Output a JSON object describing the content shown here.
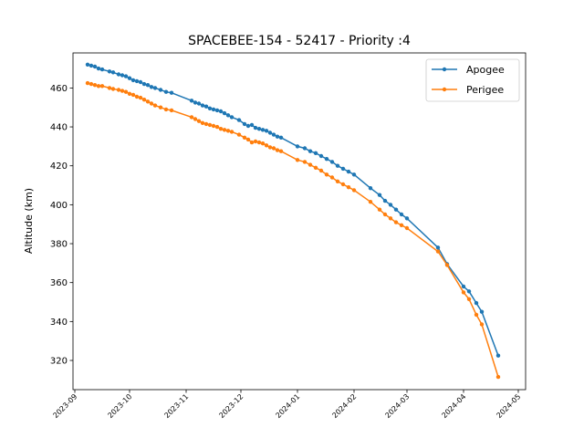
{
  "chart_data": {
    "type": "line",
    "title": "SPACEBEE-154 - 52417 - Priority :4",
    "xlabel": "",
    "ylabel": "Altitude (km)",
    "xlim": [
      "2023-08-31",
      "2024-05-05"
    ],
    "ylim": [
      305,
      478
    ],
    "x_ticks": [
      "2023-09",
      "2023-10",
      "2023-11",
      "2023-12",
      "2024-01",
      "2024-02",
      "2024-03",
      "2024-04",
      "2024-05"
    ],
    "y_ticks": [
      320,
      340,
      360,
      380,
      400,
      420,
      440,
      460
    ],
    "grid": false,
    "legend_position": "top-right",
    "series": [
      {
        "name": "Apogee",
        "color": "#1f77b4",
        "points": [
          [
            "2023-09-08",
            472
          ],
          [
            "2023-09-10",
            471.5
          ],
          [
            "2023-09-12",
            471
          ],
          [
            "2023-09-14",
            470
          ],
          [
            "2023-09-16",
            469.5
          ],
          [
            "2023-09-20",
            468.5
          ],
          [
            "2023-09-22",
            468
          ],
          [
            "2023-09-25",
            467
          ],
          [
            "2023-09-27",
            466.5
          ],
          [
            "2023-09-29",
            466
          ],
          [
            "2023-10-01",
            465
          ],
          [
            "2023-10-03",
            464
          ],
          [
            "2023-10-05",
            463.5
          ],
          [
            "2023-10-07",
            463
          ],
          [
            "2023-10-09",
            462
          ],
          [
            "2023-10-11",
            461.5
          ],
          [
            "2023-10-13",
            460.5
          ],
          [
            "2023-10-15",
            460
          ],
          [
            "2023-10-18",
            459
          ],
          [
            "2023-10-21",
            458
          ],
          [
            "2023-10-24",
            457.5
          ],
          [
            "2023-11-04",
            453.5
          ],
          [
            "2023-11-06",
            452.5
          ],
          [
            "2023-11-08",
            452
          ],
          [
            "2023-11-10",
            451
          ],
          [
            "2023-11-12",
            450.5
          ],
          [
            "2023-11-14",
            449.5
          ],
          [
            "2023-11-16",
            449
          ],
          [
            "2023-11-18",
            448.5
          ],
          [
            "2023-11-20",
            448
          ],
          [
            "2023-11-22",
            447
          ],
          [
            "2023-11-24",
            446
          ],
          [
            "2023-11-26",
            445
          ],
          [
            "2023-11-30",
            443.5
          ],
          [
            "2023-12-03",
            441.5
          ],
          [
            "2023-12-05",
            440.5
          ],
          [
            "2023-12-07",
            441
          ],
          [
            "2023-12-09",
            439.5
          ],
          [
            "2023-12-11",
            439
          ],
          [
            "2023-12-13",
            438.5
          ],
          [
            "2023-12-15",
            438
          ],
          [
            "2023-12-17",
            437
          ],
          [
            "2023-12-19",
            436
          ],
          [
            "2023-12-21",
            435
          ],
          [
            "2023-12-23",
            434.5
          ],
          [
            "2024-01-01",
            430
          ],
          [
            "2024-01-05",
            429
          ],
          [
            "2024-01-08",
            427.5
          ],
          [
            "2024-01-11",
            426.5
          ],
          [
            "2024-01-14",
            425
          ],
          [
            "2024-01-17",
            423.5
          ],
          [
            "2024-01-20",
            422
          ],
          [
            "2024-01-23",
            420
          ],
          [
            "2024-01-26",
            418.5
          ],
          [
            "2024-01-29",
            417
          ],
          [
            "2024-02-01",
            415.5
          ],
          [
            "2024-02-10",
            408.5
          ],
          [
            "2024-02-15",
            405
          ],
          [
            "2024-02-18",
            402
          ],
          [
            "2024-02-21",
            400
          ],
          [
            "2024-02-24",
            397.5
          ],
          [
            "2024-02-27",
            395
          ],
          [
            "2024-03-01",
            393
          ],
          [
            "2024-03-18",
            378
          ],
          [
            "2024-03-23",
            369.5
          ],
          [
            "2024-04-01",
            358
          ],
          [
            "2024-04-04",
            355.5
          ],
          [
            "2024-04-08",
            349.5
          ],
          [
            "2024-04-11",
            345
          ],
          [
            "2024-04-20",
            322.5
          ]
        ]
      },
      {
        "name": "Perigee",
        "color": "#ff7f0e",
        "points": [
          [
            "2023-09-08",
            462.5
          ],
          [
            "2023-09-10",
            462
          ],
          [
            "2023-09-12",
            461.5
          ],
          [
            "2023-09-14",
            461
          ],
          [
            "2023-09-16",
            461
          ],
          [
            "2023-09-20",
            460
          ],
          [
            "2023-09-22",
            459.5
          ],
          [
            "2023-09-25",
            459
          ],
          [
            "2023-09-27",
            458.5
          ],
          [
            "2023-09-29",
            458
          ],
          [
            "2023-10-01",
            457
          ],
          [
            "2023-10-03",
            456.5
          ],
          [
            "2023-10-05",
            455.5
          ],
          [
            "2023-10-07",
            455
          ],
          [
            "2023-10-09",
            454
          ],
          [
            "2023-10-11",
            453
          ],
          [
            "2023-10-13",
            452
          ],
          [
            "2023-10-15",
            451
          ],
          [
            "2023-10-18",
            450
          ],
          [
            "2023-10-21",
            449
          ],
          [
            "2023-10-24",
            448.5
          ],
          [
            "2023-11-04",
            445
          ],
          [
            "2023-11-06",
            444
          ],
          [
            "2023-11-08",
            443
          ],
          [
            "2023-11-10",
            442
          ],
          [
            "2023-11-12",
            441.5
          ],
          [
            "2023-11-14",
            441
          ],
          [
            "2023-11-16",
            440.5
          ],
          [
            "2023-11-18",
            440
          ],
          [
            "2023-11-20",
            439
          ],
          [
            "2023-11-22",
            438.5
          ],
          [
            "2023-11-24",
            438
          ],
          [
            "2023-11-26",
            437.5
          ],
          [
            "2023-11-30",
            436
          ],
          [
            "2023-12-03",
            434.5
          ],
          [
            "2023-12-05",
            433.5
          ],
          [
            "2023-12-07",
            432
          ],
          [
            "2023-12-09",
            432.5
          ],
          [
            "2023-12-11",
            432
          ],
          [
            "2023-12-13",
            431.5
          ],
          [
            "2023-12-15",
            430.5
          ],
          [
            "2023-12-17",
            429.5
          ],
          [
            "2023-12-19",
            429
          ],
          [
            "2023-12-21",
            428
          ],
          [
            "2023-12-23",
            427.5
          ],
          [
            "2024-01-01",
            423
          ],
          [
            "2024-01-05",
            422
          ],
          [
            "2024-01-08",
            420.5
          ],
          [
            "2024-01-11",
            419
          ],
          [
            "2024-01-14",
            417.5
          ],
          [
            "2024-01-17",
            415.5
          ],
          [
            "2024-01-20",
            414
          ],
          [
            "2024-01-23",
            412
          ],
          [
            "2024-01-26",
            410.5
          ],
          [
            "2024-01-29",
            409
          ],
          [
            "2024-02-01",
            407.5
          ],
          [
            "2024-02-10",
            401.5
          ],
          [
            "2024-02-15",
            397.5
          ],
          [
            "2024-02-18",
            395
          ],
          [
            "2024-02-21",
            393
          ],
          [
            "2024-02-24",
            391
          ],
          [
            "2024-02-27",
            389.5
          ],
          [
            "2024-03-01",
            388
          ],
          [
            "2024-03-18",
            376
          ],
          [
            "2024-03-23",
            369
          ],
          [
            "2024-04-01",
            355
          ],
          [
            "2024-04-04",
            351.5
          ],
          [
            "2024-04-08",
            343.5
          ],
          [
            "2024-04-11",
            338.5
          ],
          [
            "2024-04-20",
            311.5
          ]
        ]
      }
    ]
  }
}
